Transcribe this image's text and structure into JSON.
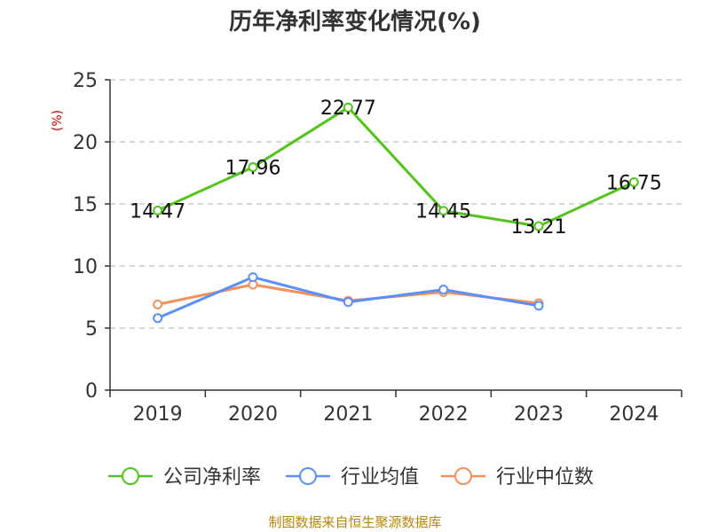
{
  "chart_data": {
    "type": "line",
    "title": "历年净利率变化情况(%)",
    "ylabel": "(%)",
    "xlabel": "",
    "categories": [
      "2019",
      "2020",
      "2021",
      "2022",
      "2023",
      "2024"
    ],
    "ylim": [
      0,
      25
    ],
    "yticks": [
      0,
      5,
      10,
      15,
      20,
      25
    ],
    "grid": true,
    "legend_position": "bottom",
    "series": [
      {
        "name": "公司净利率",
        "color": "#52c41a",
        "values": [
          14.47,
          17.96,
          22.77,
          14.45,
          13.21,
          16.75
        ],
        "show_labels": true
      },
      {
        "name": "行业均值",
        "color": "#5b8ff9",
        "values": [
          5.8,
          9.1,
          7.1,
          8.1,
          6.8,
          null
        ],
        "show_labels": false
      },
      {
        "name": "行业中位数",
        "color": "#f6905a",
        "values": [
          6.9,
          8.5,
          7.2,
          7.9,
          7.0,
          null
        ],
        "show_labels": false
      }
    ]
  },
  "footer": {
    "source": "制图数据来自恒生聚源数据库"
  },
  "colors": {
    "ylabel": "#cc0000",
    "grid": "#cccccc",
    "axis": "#333333",
    "source": "#b8860b"
  }
}
